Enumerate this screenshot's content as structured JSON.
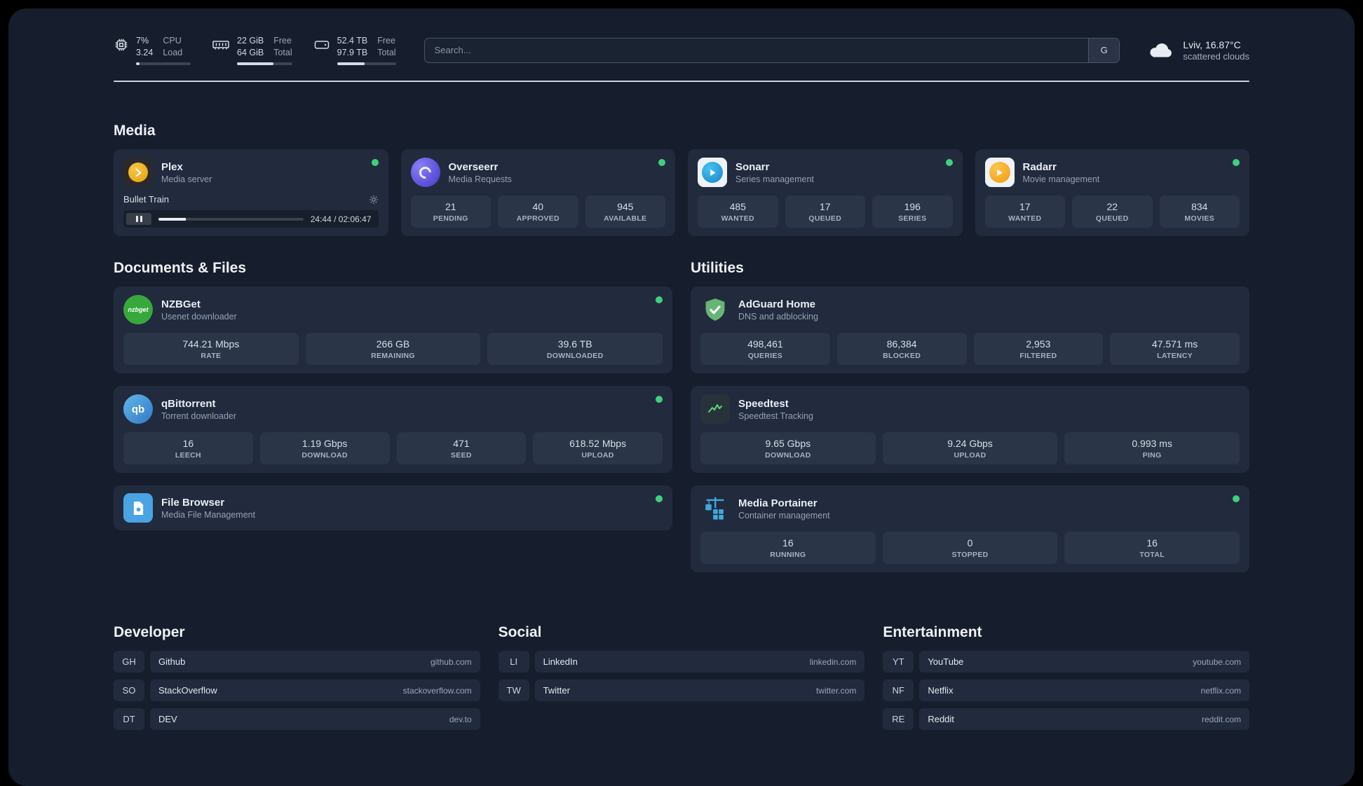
{
  "topbar": {
    "cpu": {
      "icon": "cpu-chip-icon",
      "value1": "7%",
      "value2": "3.24",
      "label1": "CPU",
      "label2": "Load",
      "progress": 7
    },
    "memory": {
      "icon": "memory-icon",
      "value1": "22 GiB",
      "value2": "64 GiB",
      "label1": "Free",
      "label2": "Total",
      "progress": 66
    },
    "disk": {
      "icon": "disk-icon",
      "value1": "52.4 TB",
      "value2": "97.9 TB",
      "label1": "Free",
      "label2": "Total",
      "progress": 47
    },
    "search": {
      "placeholder": "Search...",
      "button": "G"
    },
    "weather": {
      "icon": "cloud-icon",
      "location": "Lviv, 16.87°C",
      "condition": "scattered clouds"
    }
  },
  "media": {
    "title": "Media",
    "plex": {
      "name": "Plex",
      "subtitle": "Media server",
      "status": "online",
      "player": {
        "track": "Bullet Train",
        "time": "24:44 / 02:06:47",
        "progress": 19
      }
    },
    "overseerr": {
      "name": "Overseerr",
      "subtitle": "Media Requests",
      "status": "online",
      "stats": [
        {
          "value": "21",
          "label": "PENDING"
        },
        {
          "value": "40",
          "label": "APPROVED"
        },
        {
          "value": "945",
          "label": "AVAILABLE"
        }
      ]
    },
    "sonarr": {
      "name": "Sonarr",
      "subtitle": "Series management",
      "status": "online",
      "stats": [
        {
          "value": "485",
          "label": "WANTED"
        },
        {
          "value": "17",
          "label": "QUEUED"
        },
        {
          "value": "196",
          "label": "SERIES"
        }
      ]
    },
    "radarr": {
      "name": "Radarr",
      "subtitle": "Movie management",
      "status": "online",
      "stats": [
        {
          "value": "17",
          "label": "WANTED"
        },
        {
          "value": "22",
          "label": "QUEUED"
        },
        {
          "value": "834",
          "label": "MOVIES"
        }
      ]
    }
  },
  "documents": {
    "title": "Documents & Files",
    "nzbget": {
      "name": "NZBGet",
      "subtitle": "Usenet downloader",
      "icon_text": "nzbget",
      "status": "online",
      "stats": [
        {
          "value": "744.21 Mbps",
          "label": "RATE"
        },
        {
          "value": "266 GB",
          "label": "REMAINING"
        },
        {
          "value": "39.6 TB",
          "label": "DOWNLOADED"
        }
      ]
    },
    "qbittorrent": {
      "name": "qBittorrent",
      "subtitle": "Torrent downloader",
      "icon_text": "qb",
      "status": "online",
      "stats": [
        {
          "value": "16",
          "label": "LEECH"
        },
        {
          "value": "1.19 Gbps",
          "label": "DOWNLOAD"
        },
        {
          "value": "471",
          "label": "SEED"
        },
        {
          "value": "618.52 Mbps",
          "label": "UPLOAD"
        }
      ]
    },
    "filebrowser": {
      "name": "File Browser",
      "subtitle": "Media File Management",
      "status": "online"
    }
  },
  "utilities": {
    "title": "Utilities",
    "adguard": {
      "name": "AdGuard Home",
      "subtitle": "DNS and adblocking",
      "stats": [
        {
          "value": "498,461",
          "label": "QUERIES"
        },
        {
          "value": "86,384",
          "label": "BLOCKED"
        },
        {
          "value": "2,953",
          "label": "FILTERED"
        },
        {
          "value": "47.571 ms",
          "label": "LATENCY"
        }
      ]
    },
    "speedtest": {
      "name": "Speedtest",
      "subtitle": "Speedtest Tracking",
      "stats": [
        {
          "value": "9.65 Gbps",
          "label": "DOWNLOAD"
        },
        {
          "value": "9.24 Gbps",
          "label": "UPLOAD"
        },
        {
          "value": "0.993 ms",
          "label": "PING"
        }
      ]
    },
    "portainer": {
      "name": "Media Portainer",
      "subtitle": "Container management",
      "status": "online",
      "stats": [
        {
          "value": "16",
          "label": "RUNNING"
        },
        {
          "value": "0",
          "label": "STOPPED"
        },
        {
          "value": "16",
          "label": "TOTAL"
        }
      ]
    }
  },
  "bookmarks": {
    "developer": {
      "title": "Developer",
      "items": [
        {
          "abbr": "GH",
          "name": "Github",
          "url": "github.com"
        },
        {
          "abbr": "SO",
          "name": "StackOverflow",
          "url": "stackoverflow.com"
        },
        {
          "abbr": "DT",
          "name": "DEV",
          "url": "dev.to"
        }
      ]
    },
    "social": {
      "title": "Social",
      "items": [
        {
          "abbr": "LI",
          "name": "LinkedIn",
          "url": "linkedin.com"
        },
        {
          "abbr": "TW",
          "name": "Twitter",
          "url": "twitter.com"
        }
      ]
    },
    "entertainment": {
      "title": "Entertainment",
      "items": [
        {
          "abbr": "YT",
          "name": "YouTube",
          "url": "youtube.com"
        },
        {
          "abbr": "NF",
          "name": "Netflix",
          "url": "netflix.com"
        },
        {
          "abbr": "RE",
          "name": "Reddit",
          "url": "reddit.com"
        }
      ]
    }
  },
  "colors": {
    "status_online": "#3fd07e",
    "plex_accent": "#e5a00d",
    "background": "#161e2d",
    "card": "#212b3d"
  }
}
